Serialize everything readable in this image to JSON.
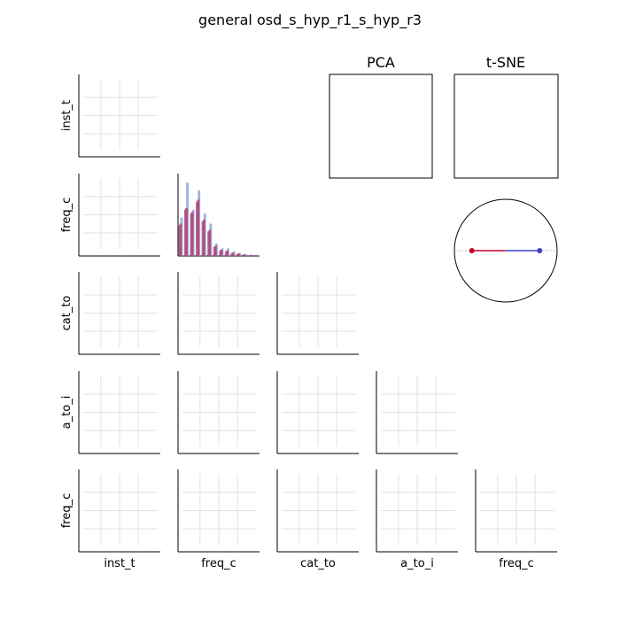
{
  "chart_data": {
    "type": "pairplot",
    "title": "general osd_s_hyp_r1_s_hyp_r3",
    "variables": [
      "inst_t",
      "freq_c",
      "cat_to",
      "a_to_i",
      "freq_c"
    ],
    "grid": true,
    "diagonal_histogram": {
      "variable": "freq_c",
      "bins": 14,
      "series": [
        {
          "color": "#8fa0d8",
          "values": [
            0.5,
            0.95,
            0.6,
            0.85,
            0.55,
            0.42,
            0.16,
            0.1,
            0.1,
            0.06,
            0.04,
            0.02,
            0.02,
            0.01
          ]
        },
        {
          "color": "#c0395c",
          "values": [
            0.42,
            0.62,
            0.57,
            0.73,
            0.47,
            0.34,
            0.13,
            0.08,
            0.07,
            0.04,
            0.03,
            0.02,
            0.01,
            0.01
          ]
        },
        {
          "color": "#9c4a84",
          "values": [
            0.4,
            0.6,
            0.55,
            0.7,
            0.45,
            0.32,
            0.12,
            0.07,
            0.06,
            0.04,
            0.03,
            0.02,
            0.01,
            0.01
          ]
        }
      ]
    },
    "projections": [
      {
        "label": "PCA"
      },
      {
        "label": "t-SNE"
      }
    ],
    "circle_diagram": {
      "points": [
        {
          "x": -0.66,
          "y": 0,
          "color": "#c0002a"
        },
        {
          "x": 0.66,
          "y": 0,
          "color": "#3a40c8"
        }
      ]
    }
  }
}
